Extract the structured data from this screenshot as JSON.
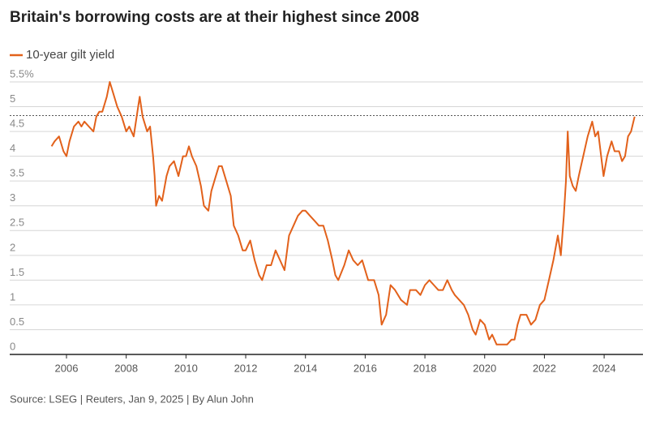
{
  "chart_data": {
    "type": "line",
    "title": "Britain's borrowing costs are at their highest since 2008",
    "source": "Source: LSEG | Reuters, Jan 9, 2025 | By Alun John",
    "series": [
      {
        "name": "10-year gilt yield",
        "color": "#e2611b",
        "x": [
          2005.5,
          2005.6,
          2005.75,
          2005.9,
          2006.0,
          2006.1,
          2006.25,
          2006.4,
          2006.5,
          2006.6,
          2006.75,
          2006.9,
          2007.0,
          2007.1,
          2007.2,
          2007.35,
          2007.45,
          2007.55,
          2007.7,
          2007.85,
          2008.0,
          2008.1,
          2008.25,
          2008.4,
          2008.45,
          2008.55,
          2008.7,
          2008.8,
          2008.9,
          2008.95,
          2009.0,
          2009.1,
          2009.2,
          2009.35,
          2009.45,
          2009.6,
          2009.75,
          2009.9,
          2010.0,
          2010.1,
          2010.2,
          2010.35,
          2010.5,
          2010.6,
          2010.75,
          2010.85,
          2011.0,
          2011.1,
          2011.2,
          2011.35,
          2011.5,
          2011.6,
          2011.75,
          2011.9,
          2012.0,
          2012.15,
          2012.3,
          2012.45,
          2012.55,
          2012.7,
          2012.85,
          2013.0,
          2013.15,
          2013.3,
          2013.45,
          2013.6,
          2013.75,
          2013.9,
          2014.0,
          2014.15,
          2014.3,
          2014.45,
          2014.6,
          2014.75,
          2014.9,
          2015.0,
          2015.1,
          2015.3,
          2015.45,
          2015.6,
          2015.75,
          2015.9,
          2016.1,
          2016.3,
          2016.45,
          2016.55,
          2016.7,
          2016.85,
          2017.0,
          2017.2,
          2017.4,
          2017.5,
          2017.7,
          2017.85,
          2018.0,
          2018.15,
          2018.3,
          2018.45,
          2018.6,
          2018.75,
          2018.9,
          2019.0,
          2019.15,
          2019.3,
          2019.45,
          2019.6,
          2019.7,
          2019.85,
          2020.0,
          2020.15,
          2020.25,
          2020.4,
          2020.6,
          2020.75,
          2020.9,
          2021.0,
          2021.1,
          2021.2,
          2021.4,
          2021.55,
          2021.7,
          2021.85,
          2022.0,
          2022.15,
          2022.3,
          2022.45,
          2022.55,
          2022.65,
          2022.72,
          2022.78,
          2022.85,
          2022.95,
          2023.05,
          2023.15,
          2023.3,
          2023.45,
          2023.6,
          2023.7,
          2023.8,
          2023.9,
          2023.98,
          2024.1,
          2024.25,
          2024.35,
          2024.5,
          2024.6,
          2024.7,
          2024.8,
          2024.9,
          2025.02
        ],
        "values": [
          4.2,
          4.3,
          4.4,
          4.1,
          4.0,
          4.3,
          4.6,
          4.7,
          4.6,
          4.7,
          4.6,
          4.5,
          4.8,
          4.9,
          4.9,
          5.2,
          5.5,
          5.3,
          5.0,
          4.8,
          4.5,
          4.6,
          4.4,
          5.0,
          5.2,
          4.8,
          4.5,
          4.6,
          4.0,
          3.6,
          3.0,
          3.2,
          3.1,
          3.6,
          3.8,
          3.9,
          3.6,
          4.0,
          4.0,
          4.2,
          4.0,
          3.8,
          3.4,
          3.0,
          2.9,
          3.3,
          3.6,
          3.8,
          3.8,
          3.5,
          3.2,
          2.6,
          2.4,
          2.1,
          2.1,
          2.3,
          1.9,
          1.6,
          1.5,
          1.8,
          1.8,
          2.1,
          1.9,
          1.7,
          2.4,
          2.6,
          2.8,
          2.9,
          2.9,
          2.8,
          2.7,
          2.6,
          2.6,
          2.3,
          1.9,
          1.6,
          1.5,
          1.8,
          2.1,
          1.9,
          1.8,
          1.9,
          1.5,
          1.5,
          1.2,
          0.6,
          0.8,
          1.4,
          1.3,
          1.1,
          1.0,
          1.3,
          1.3,
          1.2,
          1.4,
          1.5,
          1.4,
          1.3,
          1.3,
          1.5,
          1.3,
          1.2,
          1.1,
          1.0,
          0.8,
          0.5,
          0.4,
          0.7,
          0.6,
          0.3,
          0.4,
          0.2,
          0.2,
          0.2,
          0.3,
          0.3,
          0.6,
          0.8,
          0.8,
          0.6,
          0.7,
          1.0,
          1.1,
          1.5,
          1.9,
          2.4,
          2.0,
          2.8,
          3.5,
          4.5,
          3.6,
          3.4,
          3.3,
          3.6,
          4.0,
          4.4,
          4.7,
          4.4,
          4.5,
          4.0,
          3.6,
          4.0,
          4.3,
          4.1,
          4.1,
          3.9,
          4.0,
          4.4,
          4.5,
          4.8
        ]
      }
    ],
    "reference_line": 4.82,
    "xlim": [
      2004.1,
      2025.3
    ],
    "xticks": [
      2006,
      2008,
      2010,
      2012,
      2014,
      2016,
      2018,
      2020,
      2022,
      2024
    ],
    "ylim": [
      0,
      5.5
    ],
    "yticks": [
      0,
      0.5,
      1,
      1.5,
      2,
      2.5,
      3,
      3.5,
      4,
      4.5,
      5,
      {
        "value": 5.5,
        "label": "5.5%"
      }
    ],
    "grid": true
  }
}
